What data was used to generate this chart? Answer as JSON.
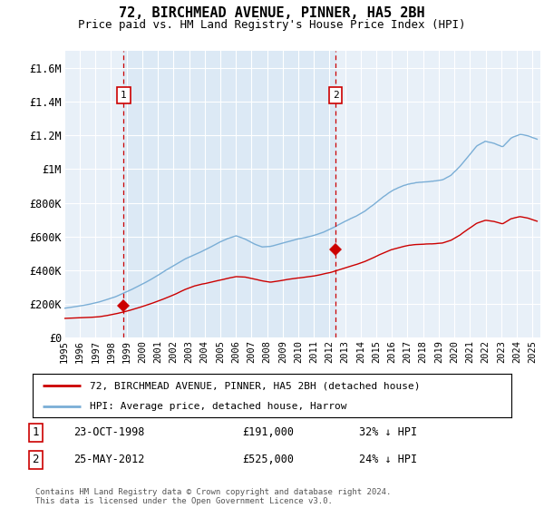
{
  "title": "72, BIRCHMEAD AVENUE, PINNER, HA5 2BH",
  "subtitle": "Price paid vs. HM Land Registry's House Price Index (HPI)",
  "legend_line1": "72, BIRCHMEAD AVENUE, PINNER, HA5 2BH (detached house)",
  "legend_line2": "HPI: Average price, detached house, Harrow",
  "footnote": "Contains HM Land Registry data © Crown copyright and database right 2024.\nThis data is licensed under the Open Government Licence v3.0.",
  "sale1_label": "1",
  "sale1_date": "23-OCT-1998",
  "sale1_price": "£191,000",
  "sale1_hpi": "32% ↓ HPI",
  "sale2_label": "2",
  "sale2_date": "25-MAY-2012",
  "sale2_price": "£525,000",
  "sale2_hpi": "24% ↓ HPI",
  "sale1_x": 1998.81,
  "sale1_y": 191000,
  "sale2_x": 2012.39,
  "sale2_y": 525000,
  "hpi_color": "#7aaed6",
  "property_color": "#cc0000",
  "shaded_bg": "#dce9f5",
  "plot_bg": "#e8f0f8",
  "ylim_min": 0,
  "ylim_max": 1700000,
  "xlim_min": 1995.0,
  "xlim_max": 2025.5,
  "yticks": [
    0,
    200000,
    400000,
    600000,
    800000,
    1000000,
    1200000,
    1400000,
    1600000
  ],
  "ytick_labels": [
    "£0",
    "£200K",
    "£400K",
    "£600K",
    "£800K",
    "£1M",
    "£1.2M",
    "£1.4M",
    "£1.6M"
  ],
  "xtick_years": [
    1995,
    1996,
    1997,
    1998,
    1999,
    2000,
    2001,
    2002,
    2003,
    2004,
    2005,
    2006,
    2007,
    2008,
    2009,
    2010,
    2011,
    2012,
    2013,
    2014,
    2015,
    2016,
    2017,
    2018,
    2019,
    2020,
    2021,
    2022,
    2023,
    2024,
    2025
  ]
}
